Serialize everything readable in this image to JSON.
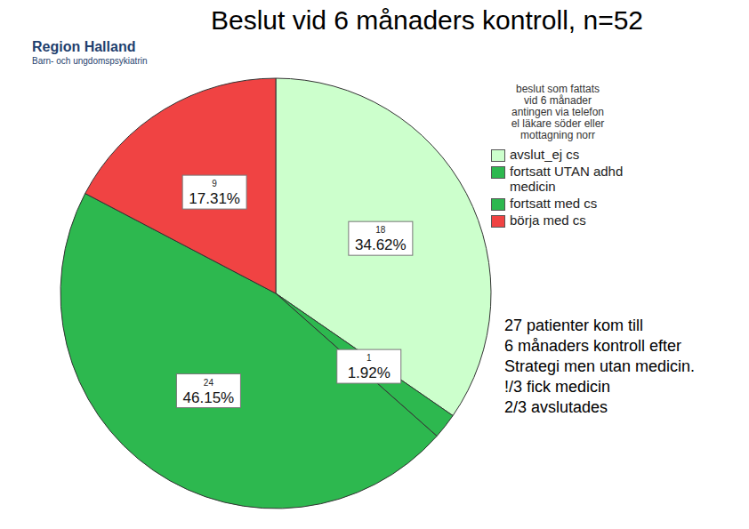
{
  "chart_data": {
    "type": "pie",
    "title": "Beslut vid 6 månaders kontroll, n=52",
    "logo": [
      "Region Halland",
      "Barn- och ungdomspsykiatrin"
    ],
    "legend_title": [
      "beslut som fattats",
      "vid 6 månader",
      "antingen via telefon",
      "el läkare söder eller",
      "mottagning norr"
    ],
    "categories": [
      "avslut_ej cs",
      "fortsatt UTAN adhd medicin",
      "fortsatt med cs",
      "börja med cs"
    ],
    "counts": [
      18,
      1,
      24,
      9
    ],
    "values": [
      34.62,
      1.92,
      46.15,
      17.31
    ],
    "value_labels": [
      "34.62%",
      "1.92%",
      "46.15%",
      "17.31%"
    ],
    "colors": [
      "#ccffcc",
      "#2db84f",
      "#2db84f",
      "#f04343"
    ],
    "data_labels": true,
    "legend": "right",
    "annotation": [
      "27 patienter kom till",
      "6 månaders kontroll efter",
      "Strategi men utan medicin.",
      "!/3 fick medicin",
      "2/3 avslutades"
    ]
  }
}
